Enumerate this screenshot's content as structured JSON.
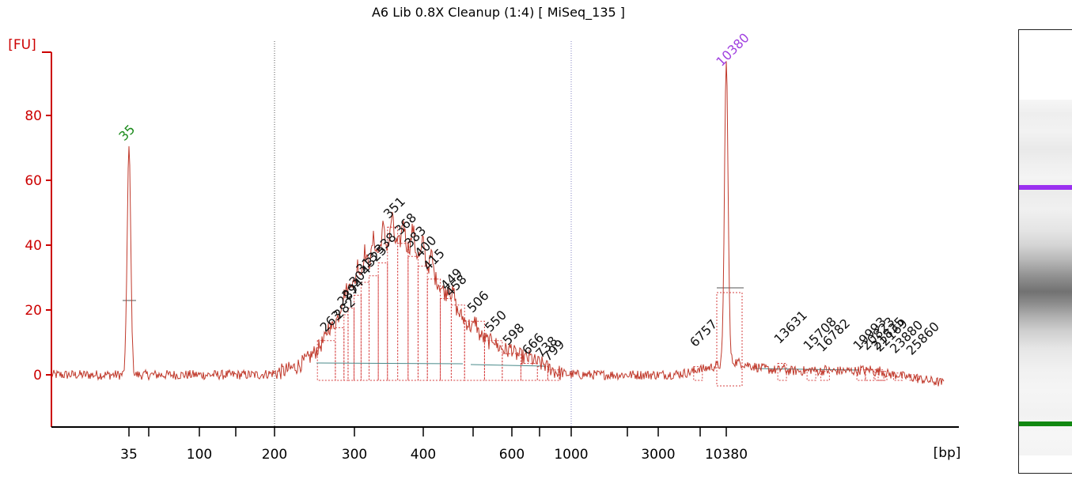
{
  "chart_data": {
    "type": "line",
    "title": "A6 Lib 0.8X Cleanup (1:4)  [ MiSeq_135 ]",
    "ylabel": "[FU]",
    "xlabel": "[bp]",
    "ylim": [
      -17,
      106
    ],
    "yticks": [
      0,
      20,
      40,
      60,
      80
    ],
    "xticks": [
      {
        "label": "35",
        "t": 35
      },
      {
        "label": "",
        "t": 47
      },
      {
        "label": "100",
        "t": 100
      },
      {
        "label": "",
        "t": 150
      },
      {
        "label": "200",
        "t": 200
      },
      {
        "label": "300",
        "t": 300
      },
      {
        "label": "400",
        "t": 400
      },
      {
        "label": "",
        "t": 500
      },
      {
        "label": "600",
        "t": 600
      },
      {
        "label": "",
        "t": 700
      },
      {
        "label": "1000",
        "t": 1000
      },
      {
        "label": "",
        "t": 2000
      },
      {
        "label": "3000",
        "t": 3000
      },
      {
        "label": "",
        "t": 7000
      },
      {
        "label": "10380",
        "t": 10380
      }
    ],
    "markers": [
      {
        "label": "35",
        "t": 35,
        "value": 70,
        "color": "#1a8a1a"
      },
      {
        "label": "10380",
        "t": 10380,
        "value": 93,
        "color": "#a040e0"
      }
    ],
    "reference_lines": [
      200,
      1000
    ],
    "peaks": [
      {
        "label": "263",
        "t": 263,
        "value": 12
      },
      {
        "label": "282",
        "t": 282,
        "value": 16
      },
      {
        "label": "287",
        "t": 287,
        "value": 20
      },
      {
        "label": "294",
        "t": 294,
        "value": 22
      },
      {
        "label": "304",
        "t": 304,
        "value": 26
      },
      {
        "label": "313",
        "t": 313,
        "value": 30
      },
      {
        "label": "325",
        "t": 325,
        "value": 32
      },
      {
        "label": "338",
        "t": 338,
        "value": 36
      },
      {
        "label": "351",
        "t": 351,
        "value": 47
      },
      {
        "label": "368",
        "t": 368,
        "value": 42
      },
      {
        "label": "383",
        "t": 383,
        "value": 38
      },
      {
        "label": "400",
        "t": 400,
        "value": 35
      },
      {
        "label": "415",
        "t": 415,
        "value": 31
      },
      {
        "label": "449",
        "t": 449,
        "value": 25
      },
      {
        "label": "458",
        "t": 458,
        "value": 23
      },
      {
        "label": "506",
        "t": 506,
        "value": 18
      },
      {
        "label": "550",
        "t": 550,
        "value": 12
      },
      {
        "label": "598",
        "t": 598,
        "value": 8
      },
      {
        "label": "666",
        "t": 666,
        "value": 5
      },
      {
        "label": "738",
        "t": 738,
        "value": 4
      },
      {
        "label": "799",
        "t": 799,
        "value": 3
      },
      {
        "label": "6757",
        "t": 6757,
        "value": 4
      },
      {
        "label": "13631",
        "t": 13631,
        "value": 5
      },
      {
        "label": "15708",
        "t": 15708,
        "value": 3
      },
      {
        "label": "16782",
        "t": 16782,
        "value": 2.5
      },
      {
        "label": "19993",
        "t": 19993,
        "value": 3
      },
      {
        "label": "20823",
        "t": 20823,
        "value": 3
      },
      {
        "label": "21835",
        "t": 21835,
        "value": 3
      },
      {
        "label": "22169",
        "t": 22169,
        "value": 2.5
      },
      {
        "label": "23880",
        "t": 23880,
        "value": 2
      },
      {
        "label": "25860",
        "t": 25860,
        "value": 1.5
      }
    ],
    "grid": false,
    "line_color": "#c0392b",
    "axis_color": "#cc0000"
  },
  "gel": {
    "upper_marker_color": "#9b30f0",
    "lower_marker_color": "#118811"
  }
}
